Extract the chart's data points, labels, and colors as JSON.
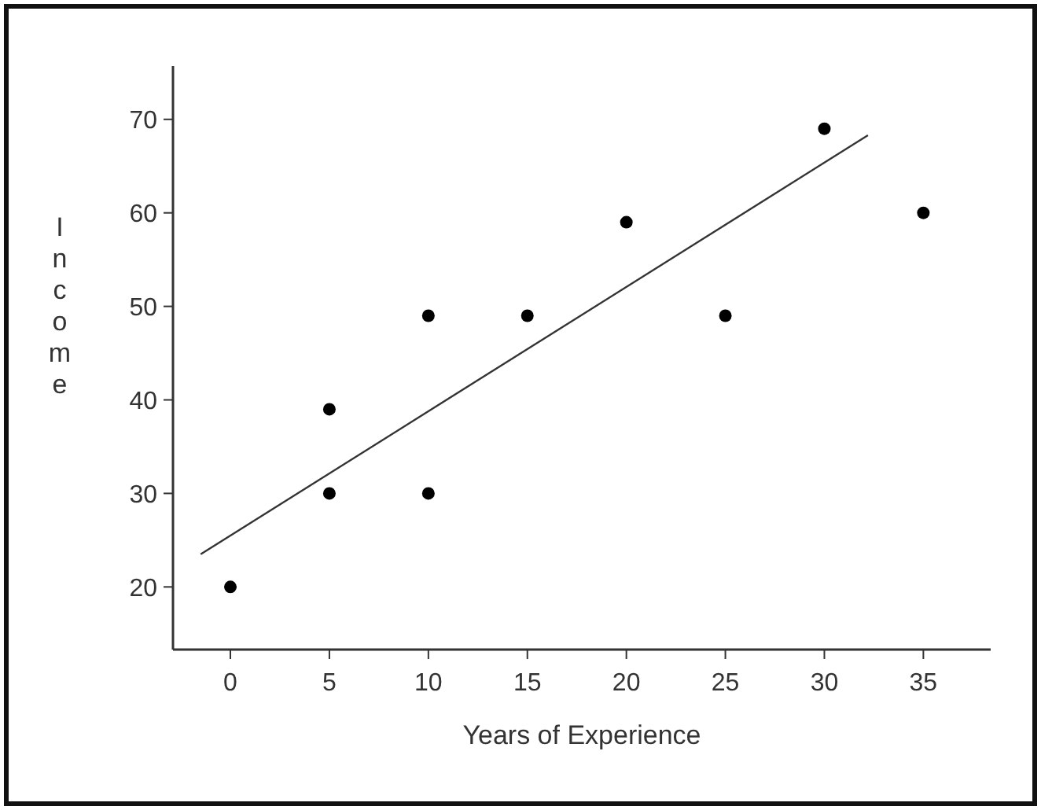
{
  "chart_data": {
    "type": "scatter",
    "xlabel": "Years of Experience",
    "ylabel": "Income",
    "xlim": [
      -2.9,
      38.4
    ],
    "ylim": [
      13.3,
      75.7
    ],
    "xticks": [
      0,
      5,
      10,
      15,
      20,
      25,
      30,
      35
    ],
    "yticks": [
      20,
      30,
      40,
      50,
      60,
      70
    ],
    "grid": false,
    "marker": "circle",
    "series": [
      {
        "color": "#000000",
        "x": [
          0,
          5,
          5,
          10,
          10,
          15,
          20,
          25,
          30,
          35
        ],
        "values": [
          20,
          39,
          30,
          49,
          30,
          49,
          59,
          49,
          69,
          60
        ]
      },
      {
        "type": "line",
        "color": "#333333",
        "marker": "none",
        "x": [
          -1.5,
          32.2
        ],
        "values": [
          23.5,
          68.3
        ]
      }
    ]
  }
}
